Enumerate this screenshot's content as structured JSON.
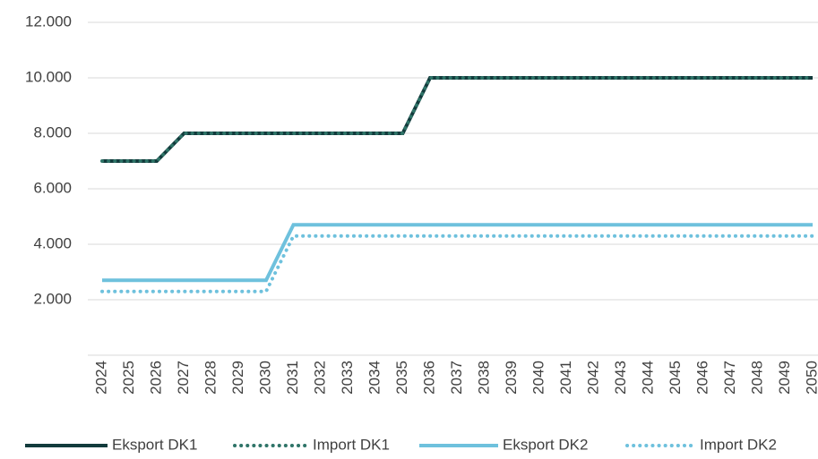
{
  "chart_data": {
    "type": "line",
    "categories": [
      "2024",
      "2025",
      "2026",
      "2027",
      "2028",
      "2029",
      "2030",
      "2031",
      "2032",
      "2033",
      "2034",
      "2035",
      "2036",
      "2037",
      "2038",
      "2039",
      "2040",
      "2041",
      "2042",
      "2043",
      "2044",
      "2045",
      "2046",
      "2047",
      "2048",
      "2049",
      "2050"
    ],
    "series": [
      {
        "name": "Eksport DK1",
        "color": "#123b3c",
        "style": "solid",
        "values": [
          7000,
          7000,
          7000,
          8000,
          8000,
          8000,
          8000,
          8000,
          8000,
          8000,
          8000,
          8000,
          10000,
          10000,
          10000,
          10000,
          10000,
          10000,
          10000,
          10000,
          10000,
          10000,
          10000,
          10000,
          10000,
          10000,
          10000
        ]
      },
      {
        "name": "Import DK1",
        "color": "#2f7468",
        "style": "dotted",
        "values": [
          7000,
          7000,
          7000,
          8000,
          8000,
          8000,
          8000,
          8000,
          8000,
          8000,
          8000,
          8000,
          10000,
          10000,
          10000,
          10000,
          10000,
          10000,
          10000,
          10000,
          10000,
          10000,
          10000,
          10000,
          10000,
          10000,
          10000
        ]
      },
      {
        "name": "Eksport DK2",
        "color": "#6ec1dd",
        "style": "solid",
        "values": [
          2700,
          2700,
          2700,
          2700,
          2700,
          2700,
          2700,
          4700,
          4700,
          4700,
          4700,
          4700,
          4700,
          4700,
          4700,
          4700,
          4700,
          4700,
          4700,
          4700,
          4700,
          4700,
          4700,
          4700,
          4700,
          4700,
          4700
        ]
      },
      {
        "name": "Import DK2",
        "color": "#6ec1dd",
        "style": "dotted",
        "values": [
          2300,
          2300,
          2300,
          2300,
          2300,
          2300,
          2300,
          4300,
          4300,
          4300,
          4300,
          4300,
          4300,
          4300,
          4300,
          4300,
          4300,
          4300,
          4300,
          4300,
          4300,
          4300,
          4300,
          4300,
          4300,
          4300,
          4300
        ]
      }
    ],
    "ylim": [
      0,
      12000
    ],
    "yticks": [
      {
        "value": 2000,
        "label": "2.000"
      },
      {
        "value": 4000,
        "label": "4.000"
      },
      {
        "value": 6000,
        "label": "6.000"
      },
      {
        "value": 8000,
        "label": "8.000"
      },
      {
        "value": 10000,
        "label": "10.000"
      },
      {
        "value": 12000,
        "label": "12.000"
      }
    ],
    "grid": true,
    "legend": "bottom"
  }
}
